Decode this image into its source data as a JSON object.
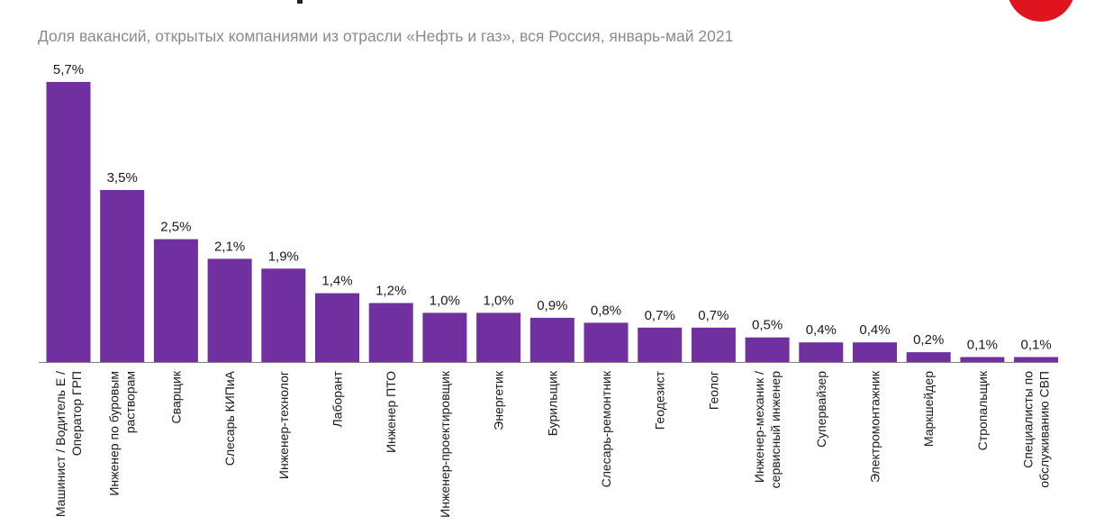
{
  "subtitle": "Доля вакансий, открытых компаниями из отрасли «Нефть и газ», вся Россия, январь-май 2021",
  "colors": {
    "bar": "#7030a0",
    "axis": "#808080",
    "label": "#1a1a1a",
    "badge": "#e0141e"
  },
  "chart_data": {
    "type": "bar",
    "title": "Доля вакансий, открытых компаниями из отрасли «Нефть и газ», вся Россия, январь-май 2021",
    "xlabel": "",
    "ylabel": "",
    "unit": "%",
    "grid": false,
    "ylim": [
      0,
      5.7
    ],
    "categories": [
      [
        "Машинист / Водитель Е /",
        "Оператор ГРП"
      ],
      [
        "Инженер по буровым",
        "растворам"
      ],
      [
        "Сварщик"
      ],
      [
        "Слесарь КИПиА"
      ],
      [
        "Инженер-технолог"
      ],
      [
        "Лаборант"
      ],
      [
        "Инженер ПТО"
      ],
      [
        "Инженер-проектировщик"
      ],
      [
        "Энергетик"
      ],
      [
        "Бурильщик"
      ],
      [
        "Слесарь-ремонтник"
      ],
      [
        "Геодезист"
      ],
      [
        "Геолог"
      ],
      [
        "Инженер-механик /",
        "сервисный инженер"
      ],
      [
        "Супервайзер"
      ],
      [
        "Электромонтажник"
      ],
      [
        "Маркшейдер"
      ],
      [
        "Стропальщик"
      ],
      [
        "Специалисты по",
        "обслуживанию СВП"
      ]
    ],
    "values": [
      5.7,
      3.5,
      2.5,
      2.1,
      1.9,
      1.4,
      1.2,
      1.0,
      1.0,
      0.9,
      0.8,
      0.7,
      0.7,
      0.5,
      0.4,
      0.4,
      0.2,
      0.1,
      0.1
    ],
    "data_labels": [
      "5,7%",
      "3,5%",
      "2,5%",
      "2,1%",
      "1,9%",
      "1,4%",
      "1,2%",
      "1,0%",
      "1,0%",
      "0,9%",
      "0,8%",
      "0,7%",
      "0,7%",
      "0,5%",
      "0,4%",
      "0,4%",
      "0,2%",
      "0,1%",
      "0,1%"
    ]
  }
}
